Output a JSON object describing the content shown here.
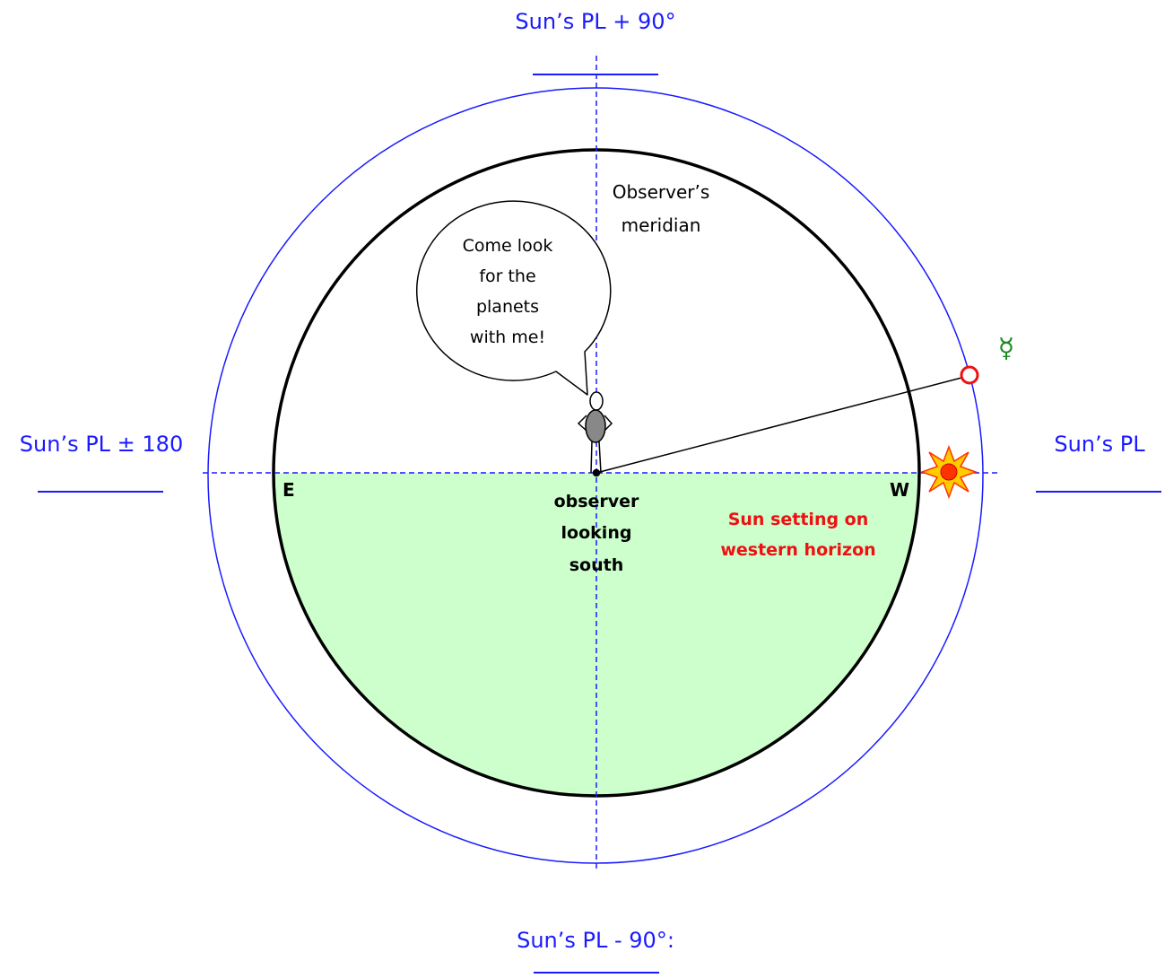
{
  "labels": {
    "top": "Sun’s PL + 90°",
    "bottom": "Sun’s PL - 90°:",
    "left": "Sun’s PL ± 180",
    "right": "Sun’s PL",
    "meridian_line1": "Observer’s",
    "meridian_line2": "meridian",
    "east": "E",
    "west": "W",
    "observer_line1": "observer",
    "observer_line2": "looking",
    "observer_line3": "south",
    "sun_line1": "Sun setting on",
    "sun_line2": "western horizon",
    "planet_symbol": "☿"
  },
  "speech_bubble": {
    "line1": "Come look",
    "line2": "for the",
    "line3": "planets",
    "line4": "with me!"
  },
  "colors": {
    "outer_circle": "#1a1aff",
    "inner_circle": "#000000",
    "ground_fill": "#ccffcc",
    "planet_marker": "#ee1111",
    "planet_symbol": "#1a8a1a",
    "sun_core": "#ff3300",
    "sun_rays": "#ffcc00"
  }
}
